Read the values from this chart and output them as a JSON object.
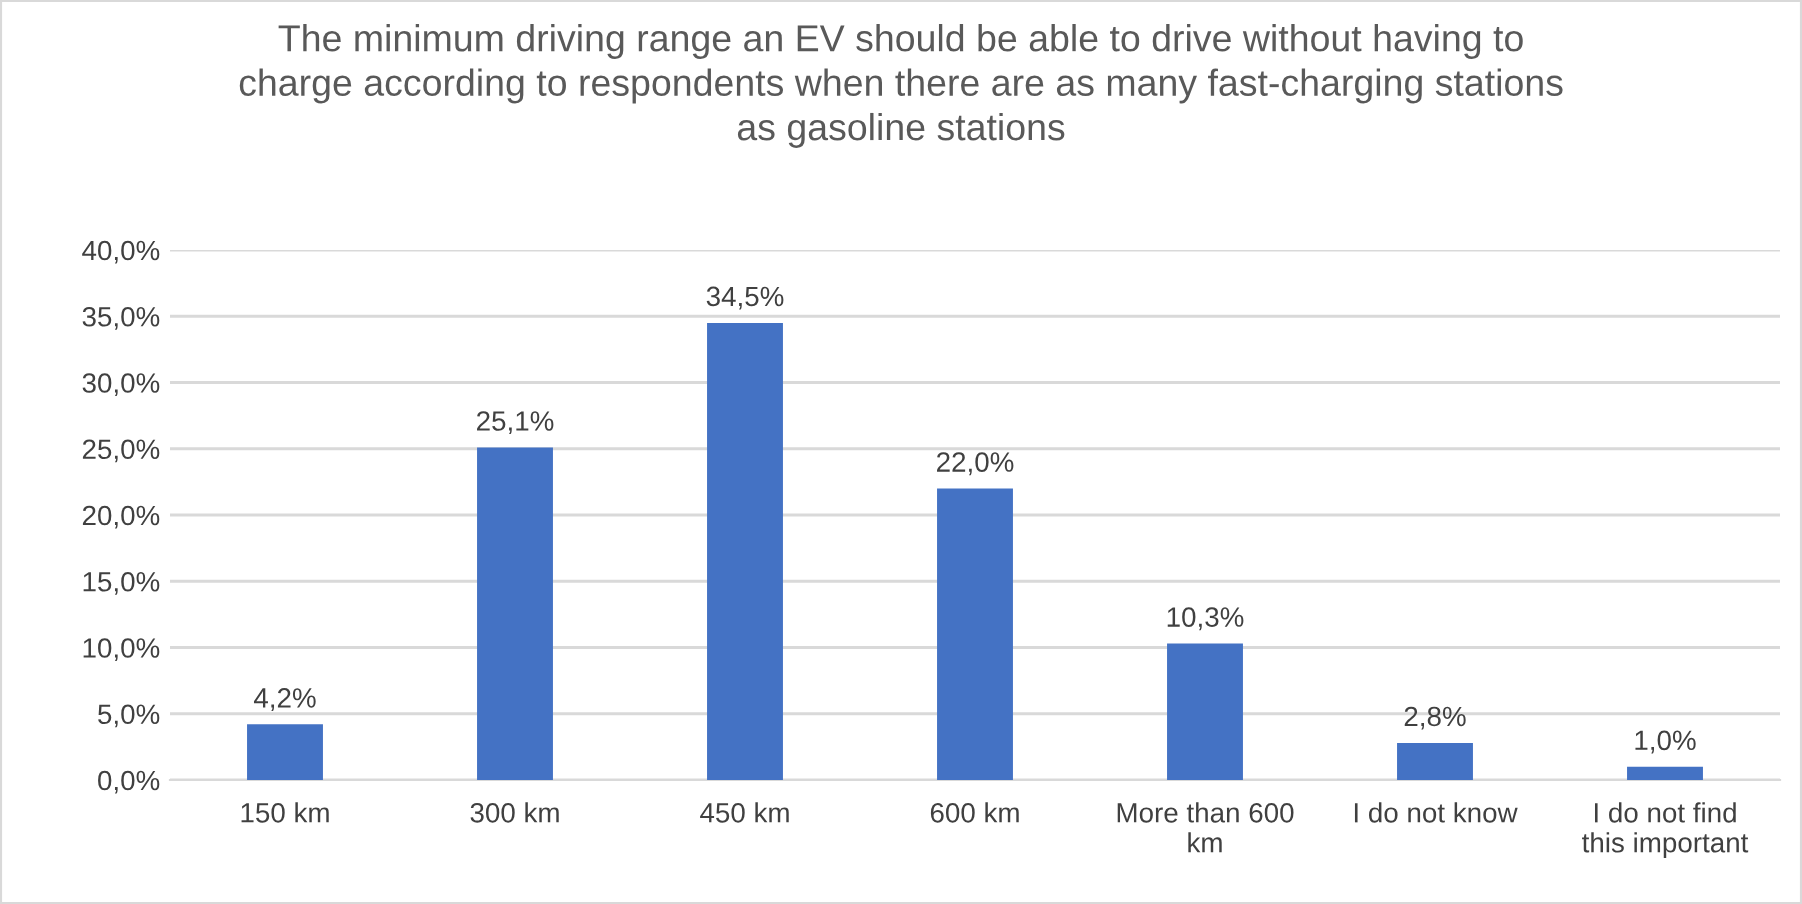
{
  "chart_data": {
    "type": "bar",
    "title": "The minimum driving range an EV should be able to drive without having to charge according to respondents when there are as many fast-charging stations as gasoline stations",
    "categories": [
      "150 km",
      "300 km",
      "450 km",
      "600 km",
      "More than 600 km",
      "I do not know",
      "I do not find this important"
    ],
    "values": [
      4.2,
      25.1,
      34.5,
      22.0,
      10.3,
      2.8,
      1.0
    ],
    "value_labels": [
      "4,2%",
      "25,1%",
      "34,5%",
      "22,0%",
      "10,3%",
      "2,8%",
      "1,0%"
    ],
    "color": "#4472c4",
    "ylim": [
      0,
      40
    ],
    "yticks": [
      {
        "value": 0,
        "label": "0,0%"
      },
      {
        "value": 5,
        "label": "5,0%"
      },
      {
        "value": 10,
        "label": "10,0%"
      },
      {
        "value": 15,
        "label": "15,0%"
      },
      {
        "value": 20,
        "label": "20,0%"
      },
      {
        "value": 25,
        "label": "25,0%"
      },
      {
        "value": 30,
        "label": "30,0%"
      },
      {
        "value": 35,
        "label": "35,0%"
      },
      {
        "value": 40,
        "label": "40,0%"
      }
    ],
    "grid": "y"
  }
}
